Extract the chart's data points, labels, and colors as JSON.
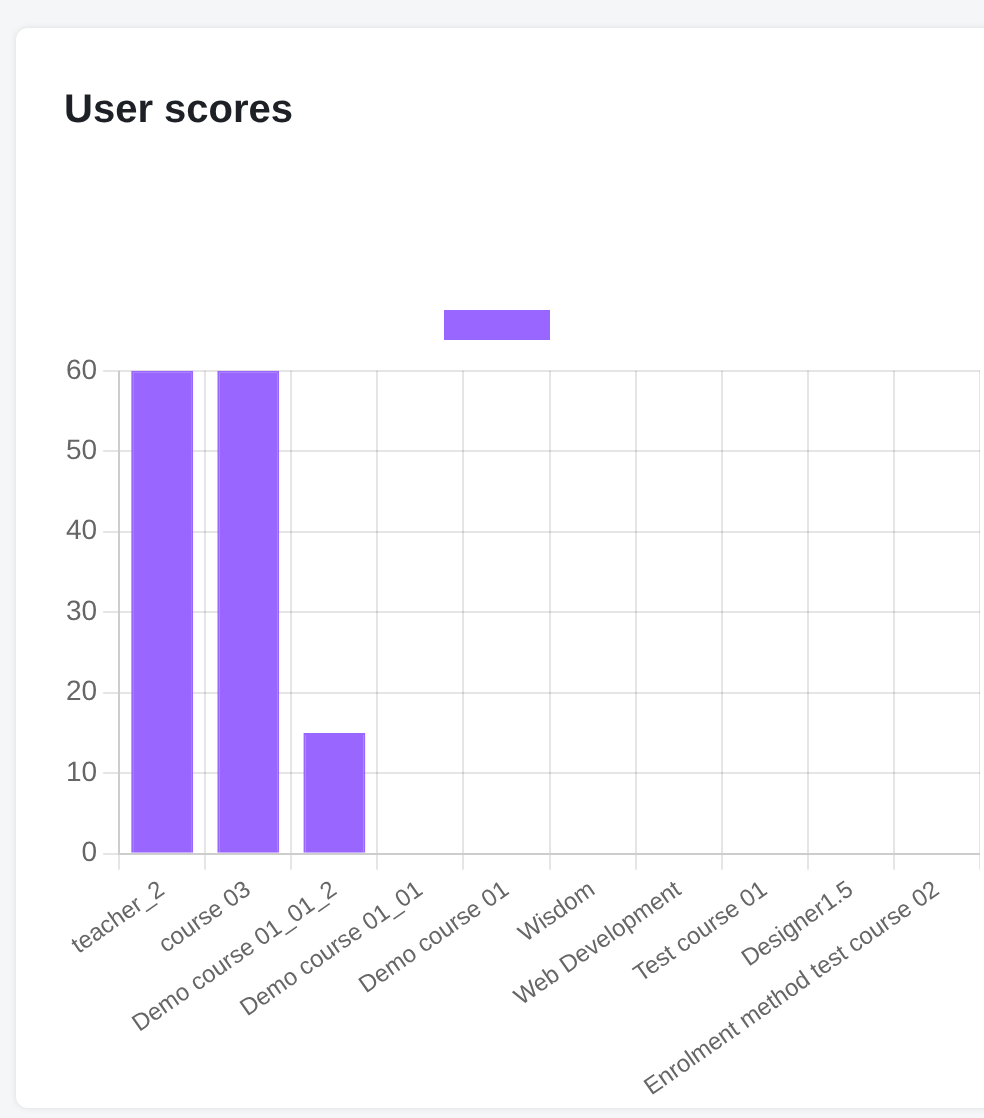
{
  "chart_data": {
    "type": "bar",
    "title": "User scores",
    "categories": [
      "teacher_2",
      "course 03",
      "Demo course 01_01_2",
      "Demo course 01_01",
      "Demo course 01",
      "Wisdom",
      "Web Development",
      "Test course 01",
      "Designer1.5",
      "Enrolment method test course 02"
    ],
    "series": [
      {
        "color": "#9966ff",
        "values": [
          60,
          60,
          15,
          0,
          0,
          0,
          0,
          0,
          0,
          0
        ]
      }
    ],
    "ylim": [
      0,
      60
    ],
    "yticks": [
      0,
      10,
      20,
      30,
      40,
      50,
      60
    ],
    "grid": true
  }
}
